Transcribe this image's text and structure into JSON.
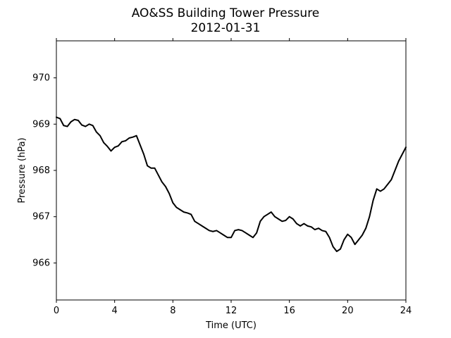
{
  "chart_data": {
    "type": "line",
    "title": "AO&SS Building Tower Pressure",
    "subtitle": "2012-01-31",
    "xlabel": "Time (UTC)",
    "ylabel": "Pressure (hPa)",
    "xlim": [
      0,
      24
    ],
    "ylim": [
      965.2,
      970.8
    ],
    "xticks": [
      0,
      4,
      8,
      12,
      16,
      20,
      24
    ],
    "yticks": [
      966,
      967,
      968,
      969,
      970
    ],
    "grid": false,
    "legend": "none",
    "series": [
      {
        "color": "#000000",
        "x": [
          0.0,
          0.25,
          0.5,
          0.75,
          1.0,
          1.25,
          1.5,
          1.75,
          2.0,
          2.25,
          2.5,
          2.75,
          3.0,
          3.25,
          3.5,
          3.75,
          4.0,
          4.25,
          4.5,
          4.75,
          5.0,
          5.25,
          5.5,
          5.75,
          6.0,
          6.25,
          6.5,
          6.75,
          7.0,
          7.25,
          7.5,
          7.75,
          8.0,
          8.25,
          8.5,
          8.75,
          9.0,
          9.25,
          9.5,
          9.75,
          10.0,
          10.25,
          10.5,
          10.75,
          11.0,
          11.25,
          11.5,
          11.75,
          12.0,
          12.25,
          12.5,
          12.75,
          13.0,
          13.25,
          13.5,
          13.75,
          14.0,
          14.25,
          14.5,
          14.75,
          15.0,
          15.25,
          15.5,
          15.75,
          16.0,
          16.25,
          16.5,
          16.75,
          17.0,
          17.25,
          17.5,
          17.75,
          18.0,
          18.25,
          18.5,
          18.75,
          19.0,
          19.25,
          19.5,
          19.75,
          20.0,
          20.25,
          20.5,
          20.75,
          21.0,
          21.25,
          21.5,
          21.75,
          22.0,
          22.25,
          22.5,
          22.75,
          23.0,
          23.25,
          23.5,
          23.75,
          24.0
        ],
        "y": [
          969.15,
          969.12,
          968.97,
          968.95,
          969.05,
          969.1,
          969.08,
          968.98,
          968.95,
          969.0,
          968.97,
          968.83,
          968.75,
          968.6,
          968.52,
          968.42,
          968.5,
          968.53,
          968.62,
          968.64,
          968.7,
          968.72,
          968.75,
          968.55,
          968.35,
          968.1,
          968.05,
          968.05,
          967.9,
          967.75,
          967.65,
          967.5,
          967.3,
          967.2,
          967.15,
          967.1,
          967.08,
          967.05,
          966.9,
          966.85,
          966.8,
          966.75,
          966.7,
          966.68,
          966.7,
          966.65,
          966.6,
          966.55,
          966.55,
          966.7,
          966.72,
          966.7,
          966.65,
          966.6,
          966.55,
          966.65,
          966.9,
          967.0,
          967.05,
          967.1,
          967.0,
          966.95,
          966.9,
          966.92,
          967.0,
          966.95,
          966.85,
          966.8,
          966.85,
          966.8,
          966.78,
          966.72,
          966.75,
          966.7,
          966.68,
          966.55,
          966.35,
          966.25,
          966.3,
          966.5,
          966.62,
          966.55,
          966.4,
          966.5,
          966.6,
          966.75,
          967.0,
          967.35,
          967.6,
          967.55,
          967.6,
          967.7,
          967.8,
          968.0,
          968.2,
          968.35,
          968.5
        ]
      }
    ]
  }
}
